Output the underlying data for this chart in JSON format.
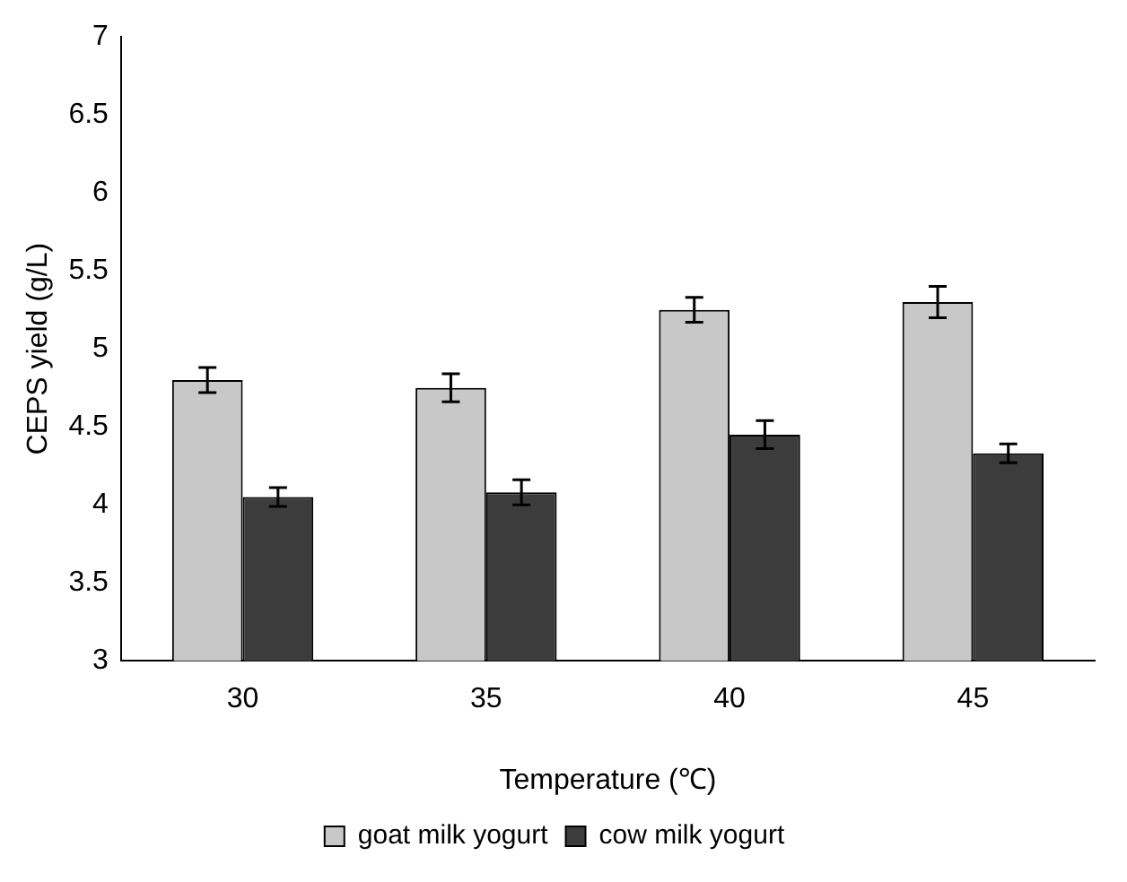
{
  "chart_data": {
    "type": "bar",
    "xlabel": "Temperature (℃)",
    "ylabel": "CEPS yield (g/L)",
    "categories": [
      "30",
      "35",
      "40",
      "45"
    ],
    "series": [
      {
        "name": "goat milk yogurt",
        "color": "#c8c8c8",
        "values": [
          4.8,
          4.75,
          5.25,
          5.3
        ],
        "errors": [
          0.08,
          0.09,
          0.08,
          0.1
        ]
      },
      {
        "name": "cow milk yogurt",
        "color": "#3c3c3c",
        "values": [
          4.05,
          4.08,
          4.45,
          4.33
        ],
        "errors": [
          0.06,
          0.08,
          0.09,
          0.06
        ]
      }
    ],
    "ylim": [
      3,
      7
    ],
    "yticks": [
      3,
      3.5,
      4,
      4.5,
      5,
      5.5,
      6,
      6.5,
      7
    ],
    "grid": false,
    "legend": "bottom"
  }
}
